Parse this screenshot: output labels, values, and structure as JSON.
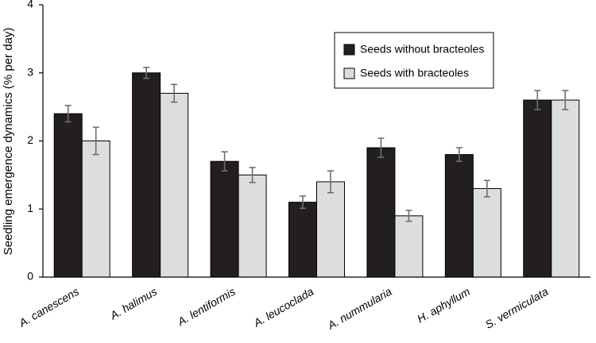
{
  "chart_data": {
    "type": "bar",
    "title": "",
    "xlabel": "",
    "ylabel": "Seedling emergence dynamics (% per day)",
    "ylim": [
      0,
      4
    ],
    "yticks": [
      0,
      1,
      2,
      3,
      4
    ],
    "grid": false,
    "legend_position": "top-right",
    "categories": [
      "A. canescens",
      "A. halimus",
      "A. lentiformis",
      "A. leucoclada",
      "A. nummularia",
      "H. aphyllum",
      "S. vermiculata"
    ],
    "series": [
      {
        "name": "Seeds without bracteoles",
        "color": "#231f20",
        "values": [
          2.4,
          3.0,
          1.7,
          1.1,
          1.9,
          1.8,
          2.6
        ],
        "errors": [
          0.12,
          0.08,
          0.14,
          0.09,
          0.14,
          0.1,
          0.14
        ]
      },
      {
        "name": "Seeds with bracteoles",
        "color": "#dcdddf",
        "values": [
          2.0,
          2.7,
          1.5,
          1.4,
          0.9,
          1.3,
          2.6
        ],
        "errors": [
          0.2,
          0.13,
          0.11,
          0.16,
          0.08,
          0.12,
          0.14
        ]
      }
    ]
  }
}
